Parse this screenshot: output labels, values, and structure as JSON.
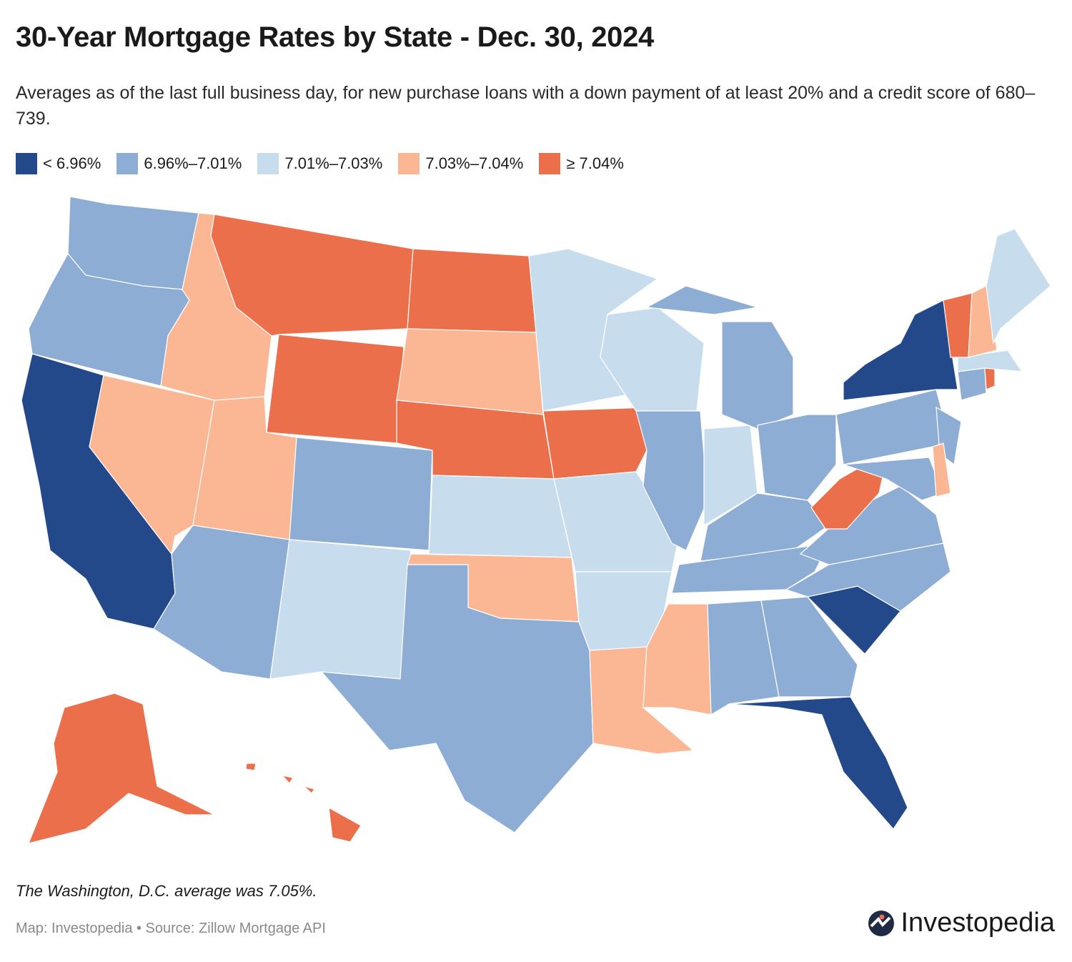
{
  "title": "30-Year Mortgage Rates by State - Dec. 30, 2024",
  "subtitle": "Averages as of the last full business day, for new purchase loans with a down payment of at least 20% and a credit score of 680–739.",
  "legend": [
    {
      "label": "< 6.96%",
      "color": "#23498a"
    },
    {
      "label": "6.96%–7.01%",
      "color": "#8eadd5"
    },
    {
      "label": "7.01%–7.03%",
      "color": "#c7ddee"
    },
    {
      "label": "7.03%–7.04%",
      "color": "#fbb693"
    },
    {
      "label": "≥ 7.04%",
      "color": "#ec6f4c"
    }
  ],
  "chart_data": {
    "type": "choropleth",
    "title": "30-Year Mortgage Rates by State - Dec. 30, 2024",
    "bins": [
      "< 6.96%",
      "6.96%–7.01%",
      "7.01%–7.03%",
      "7.03%–7.04%",
      "≥ 7.04%"
    ],
    "states": {
      "CA": 0,
      "NY": 0,
      "SC": 0,
      "FL": 0,
      "WA": 1,
      "OR": 1,
      "CO": 1,
      "AZ": 1,
      "TX": 1,
      "IL": 1,
      "MI": 1,
      "OH": 1,
      "KY": 1,
      "TN": 1,
      "NC": 1,
      "VA": 1,
      "PA": 1,
      "NJ": 1,
      "MD": 1,
      "CT": 1,
      "AL": 1,
      "GA": 1,
      "MN": 2,
      "WI": 2,
      "MO": 2,
      "KS": 2,
      "NM": 2,
      "AR": 2,
      "IN": 2,
      "ME": 2,
      "MA": 2,
      "ID": 3,
      "NV": 3,
      "UT": 3,
      "SD": 3,
      "OK": 3,
      "MS": 3,
      "LA": 3,
      "NH": 3,
      "DE": 3,
      "MT": 4,
      "WY": 4,
      "ND": 4,
      "NE": 4,
      "IA": 4,
      "WV": 4,
      "VT": 4,
      "RI": 4,
      "AK": 4,
      "HI": 4
    }
  },
  "note": "The Washington, D.C. average was 7.05%.",
  "source": "Map: Investopedia • Source: Zillow Mortgage API",
  "brand": "Investopedia"
}
